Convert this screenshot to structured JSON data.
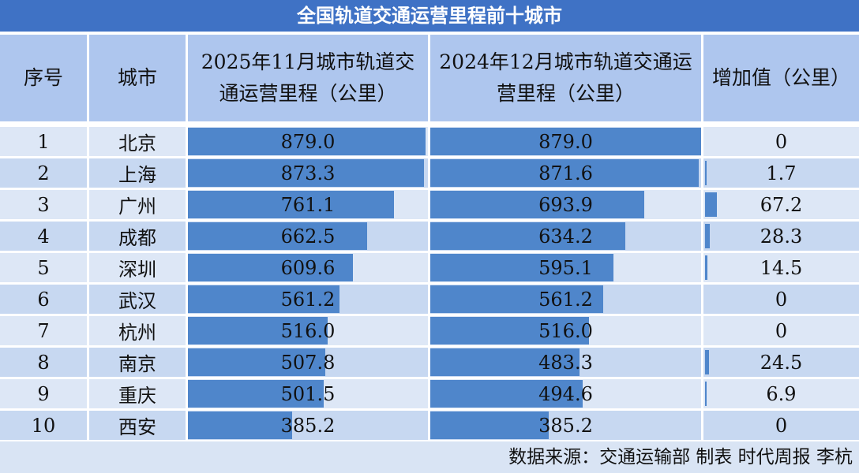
{
  "title": "全国轨道交通运营里程前十城市",
  "headers": {
    "rank": "序号",
    "city": "城市",
    "col_2025": [
      "2025年11月城市轨道交",
      "通运营里程（公里）"
    ],
    "col_2024": [
      "2024年12月城市轨道交通运",
      "营里程（公里）"
    ],
    "increase": "增加值（公里）"
  },
  "footer": "数据来源：交通运输部 制表 时代周报 李杭",
  "colors": {
    "title_bg": "#3f72c5",
    "header_bg": "#aec6ee",
    "row_light": "#dde7f6",
    "row_dark": "#c7d8f1",
    "bar": "#4f86cb"
  },
  "chart_data": {
    "type": "table",
    "title": "全国轨道交通运营里程前十城市",
    "columns": [
      "序号",
      "城市",
      "2025年11月城市轨道交通运营里程（公里）",
      "2024年12月城市轨道交通运营里程（公里）",
      "增加值（公里）"
    ],
    "rows": [
      {
        "rank": "1",
        "city": "北京",
        "v2025": "879.0",
        "v2024": "879.0",
        "increase": "0"
      },
      {
        "rank": "2",
        "city": "上海",
        "v2025": "873.3",
        "v2024": "871.6",
        "increase": "1.7"
      },
      {
        "rank": "3",
        "city": "广州",
        "v2025": "761.1",
        "v2024": "693.9",
        "increase": "67.2"
      },
      {
        "rank": "4",
        "city": "成都",
        "v2025": "662.5",
        "v2024": "634.2",
        "increase": "28.3"
      },
      {
        "rank": "5",
        "city": "深圳",
        "v2025": "609.6",
        "v2024": "595.1",
        "increase": "14.5"
      },
      {
        "rank": "6",
        "city": "武汉",
        "v2025": "561.2",
        "v2024": "561.2",
        "increase": "0"
      },
      {
        "rank": "7",
        "city": "杭州",
        "v2025": "516.0",
        "v2024": "516.0",
        "increase": "0"
      },
      {
        "rank": "8",
        "city": "南京",
        "v2025": "507.8",
        "v2024": "483.3",
        "increase": "24.5"
      },
      {
        "rank": "9",
        "city": "重庆",
        "v2025": "501.5",
        "v2024": "494.6",
        "increase": "6.9"
      },
      {
        "rank": "10",
        "city": "西安",
        "v2025": "385.2",
        "v2024": "385.2",
        "increase": "0"
      }
    ],
    "bar_max": 879.0,
    "increase_bar_max": 879.0
  }
}
